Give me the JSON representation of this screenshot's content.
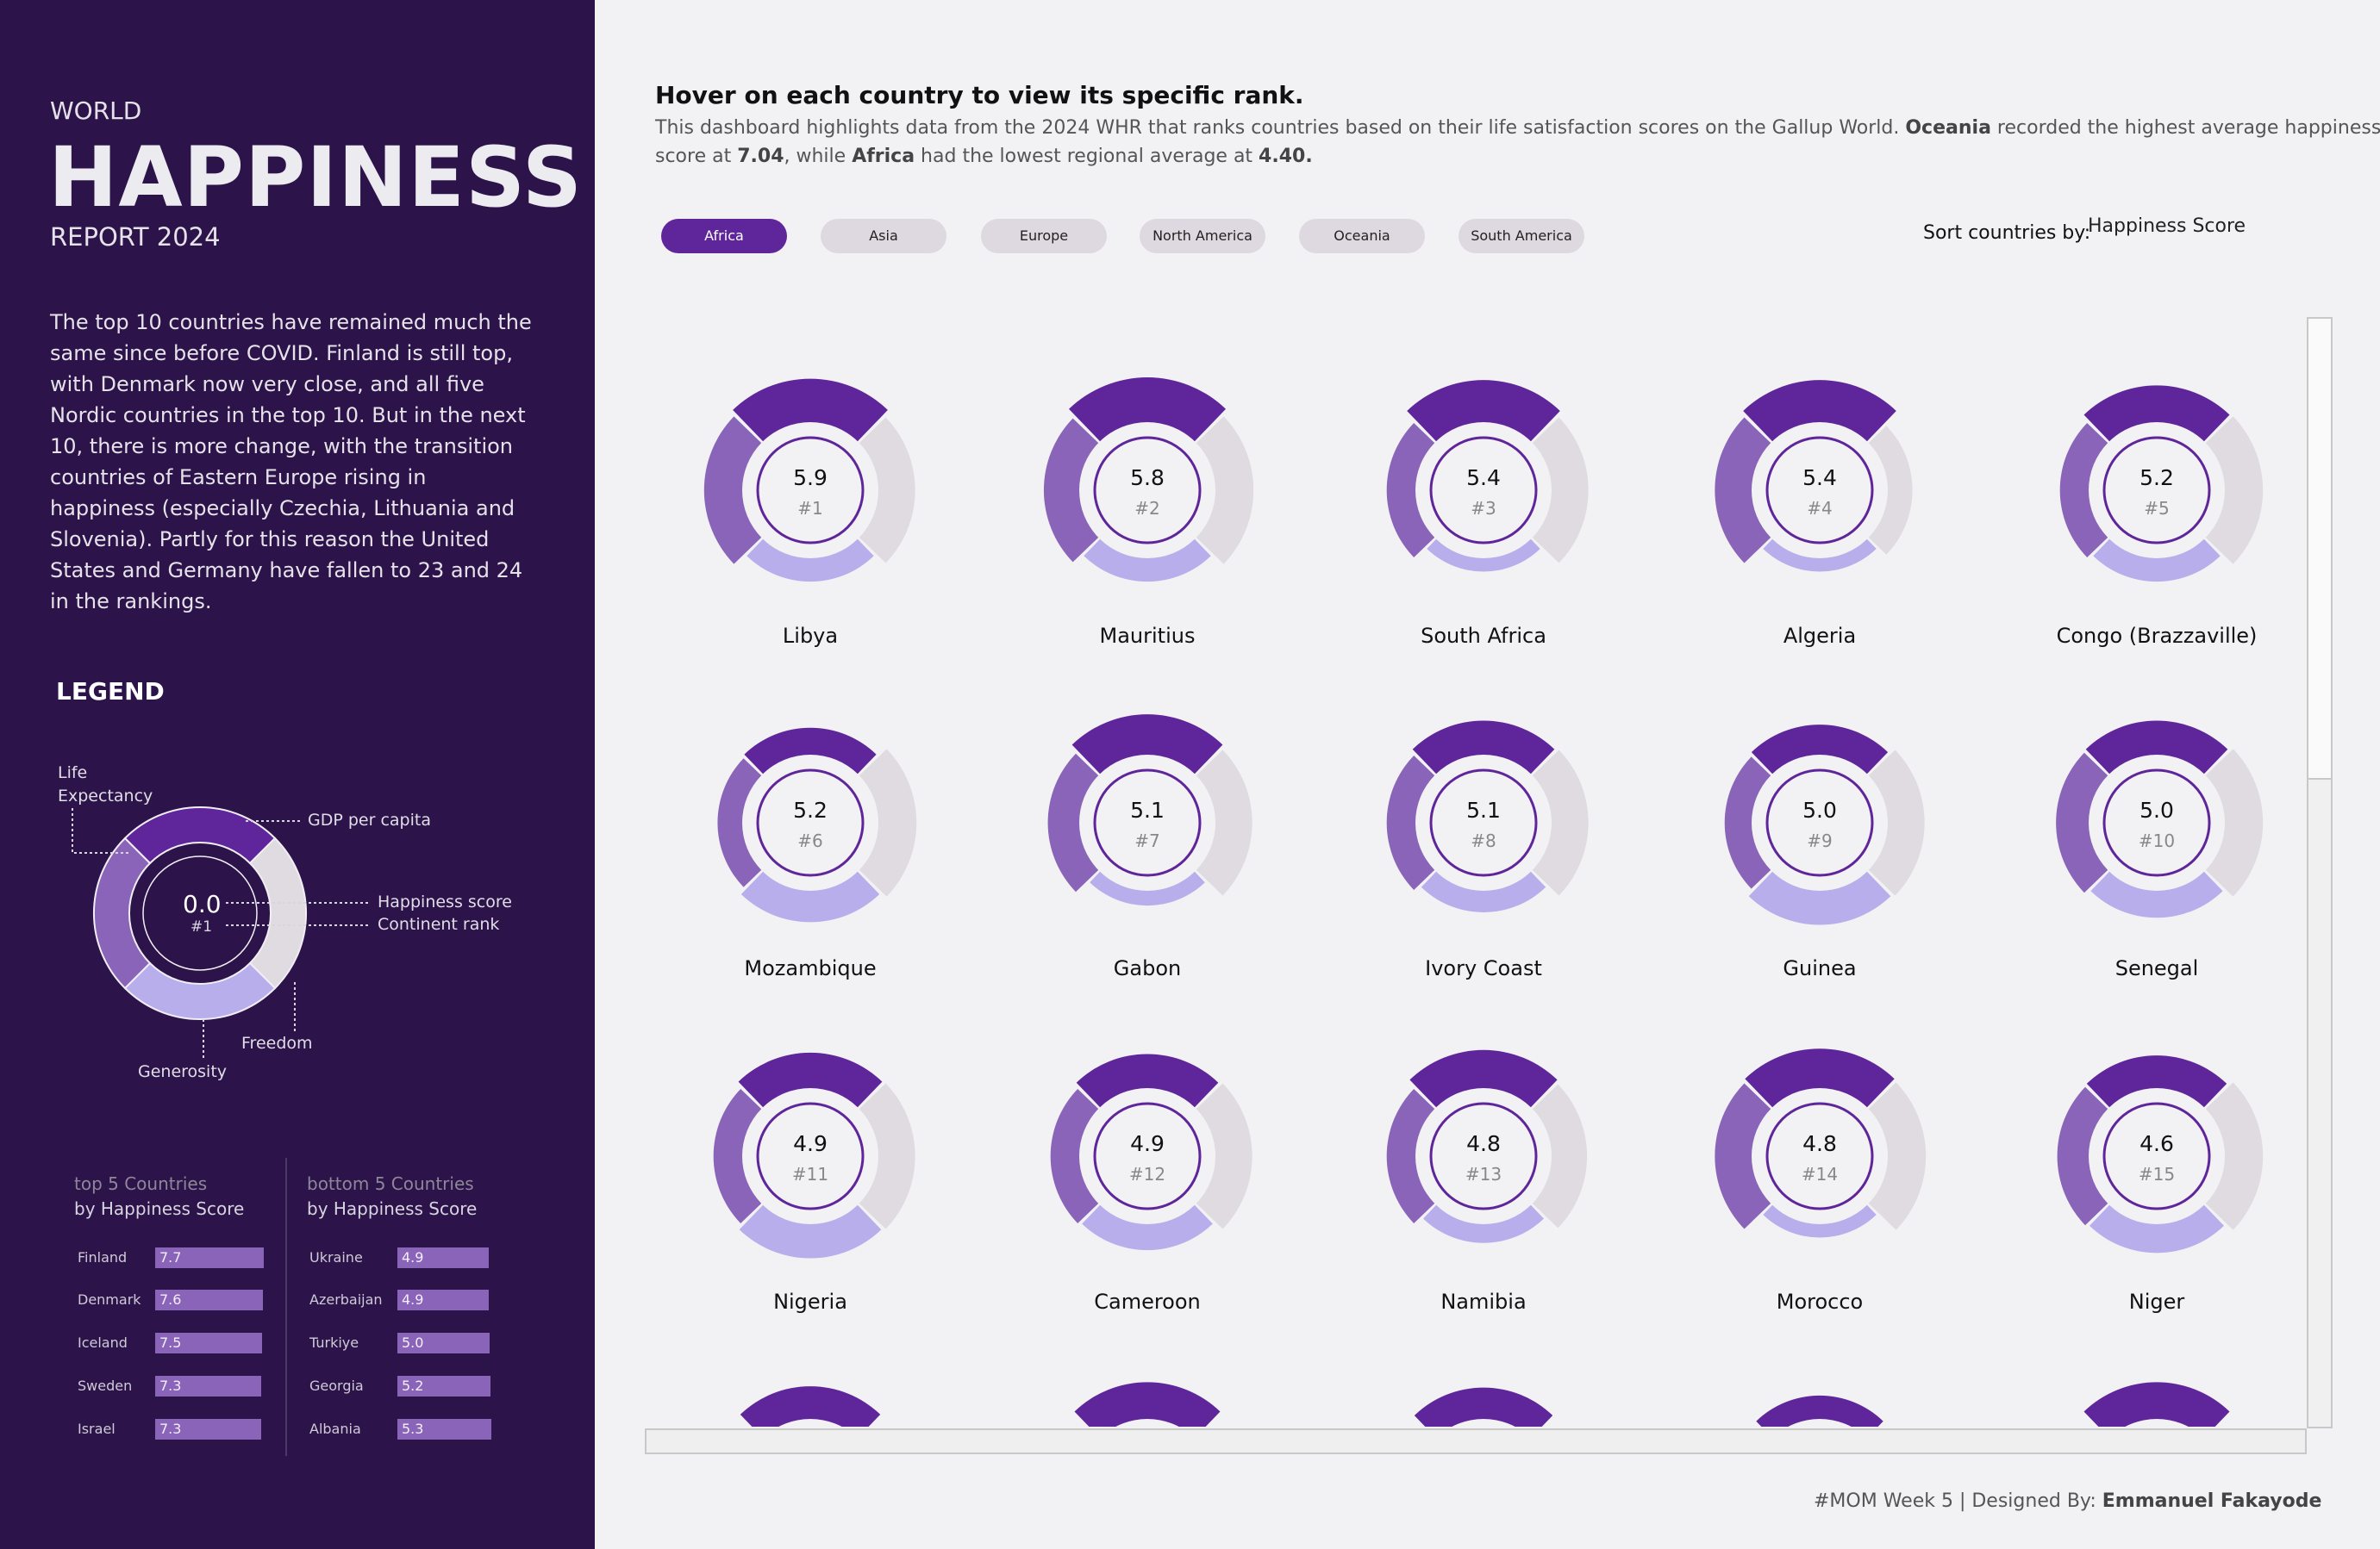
{
  "sidebar": {
    "kicker": "WORLD",
    "title": "HAPPINESS",
    "subtitle": "REPORT 2024",
    "paragraph": "The top 10 countries have remained much the same since before COVID. Finland is still top, with Denmark now very close, and all five Nordic countries in the top 10. But in the next 10, there is more change, with the transition countries of Eastern Europe rising in happiness (especially Czechia, Lithuania and Slovenia). Partly for this reason the United States and Germany have fallen to 23 and 24 in the rankings.",
    "legend": {
      "title": "LEGEND",
      "score": "0.0",
      "rank": "#1",
      "life": "Life",
      "life2": "Expectancy",
      "gdp": "GDP per capita",
      "happiness": "Happiness score",
      "continent_rank": "Continent rank",
      "freedom": "Freedom",
      "generosity": "Generosity"
    },
    "top5": {
      "h1": "top 5 Countries",
      "h2": "by Happiness Score",
      "rows": [
        {
          "name": "Finland",
          "value": "7.7"
        },
        {
          "name": "Denmark",
          "value": "7.6"
        },
        {
          "name": "Iceland",
          "value": "7.5"
        },
        {
          "name": "Sweden",
          "value": "7.3"
        },
        {
          "name": "Israel",
          "value": "7.3"
        }
      ]
    },
    "bottom5": {
      "h1": "bottom 5 Countries",
      "h2": "by Happiness Score",
      "rows": [
        {
          "name": "Ukraine",
          "value": "4.9"
        },
        {
          "name": "Azerbaijan",
          "value": "4.9"
        },
        {
          "name": "Turkiye",
          "value": "5.0"
        },
        {
          "name": "Georgia",
          "value": "5.2"
        },
        {
          "name": "Albania",
          "value": "5.3"
        }
      ]
    }
  },
  "header": {
    "title": "Hover on each country to view its specific rank.",
    "desc1": "This dashboard highlights data from the 2024 WHR that ranks countries based on their life satisfaction scores on the Gallup World. ",
    "desc_b1": "Oceania",
    "desc2": " recorded the highest average happiness",
    "desc3": "score at ",
    "desc_b2": "7.04",
    "desc4": ", while ",
    "desc_b3": "Africa",
    "desc5": " had the lowest regional average at ",
    "desc_b4": "4.40."
  },
  "filters": [
    "Africa",
    "Asia",
    "Europe",
    "North America",
    "Oceania",
    "South America"
  ],
  "active_filter": "Africa",
  "sort": {
    "label": "Sort countries by:",
    "value": "Happiness Score"
  },
  "colors": {
    "gdp": "#5f259a",
    "life": "#8a64b8",
    "generosity": "#b7aeeb",
    "freedom": "#dfdbe1",
    "ring": "#5f259a"
  },
  "countries": [
    {
      "name": "Libya",
      "score": "5.9",
      "rank": "#1",
      "gdp": 0.97,
      "life": 0.85,
      "generosity": 0.52,
      "freedom": 0.82
    },
    {
      "name": "Mauritius",
      "score": "5.8",
      "rank": "#2",
      "gdp": 1.0,
      "life": 0.79,
      "generosity": 0.52,
      "freedom": 0.85
    },
    {
      "name": "South Africa",
      "score": "5.4",
      "rank": "#3",
      "gdp": 0.94,
      "life": 0.64,
      "generosity": 0.3,
      "freedom": 0.82
    },
    {
      "name": "Algeria",
      "score": "5.4",
      "rank": "#4",
      "gdp": 0.94,
      "life": 0.82,
      "generosity": 0.3,
      "freedom": 0.55
    },
    {
      "name": "Congo (Brazzaville)",
      "score": "5.2",
      "rank": "#5",
      "gdp": 0.82,
      "life": 0.64,
      "generosity": 0.52,
      "freedom": 0.85
    },
    {
      "name": "Mozambique",
      "score": "5.2",
      "rank": "#6",
      "gdp": 0.6,
      "life": 0.55,
      "generosity": 0.7,
      "freedom": 0.85
    },
    {
      "name": "Gabon",
      "score": "5.1",
      "rank": "#7",
      "gdp": 0.9,
      "life": 0.7,
      "generosity": 0.33,
      "freedom": 0.82
    },
    {
      "name": "Ivory Coast",
      "score": "5.1",
      "rank": "#8",
      "gdp": 0.76,
      "life": 0.64,
      "generosity": 0.48,
      "freedom": 0.82
    },
    {
      "name": "Guinea",
      "score": "5.0",
      "rank": "#9",
      "gdp": 0.67,
      "life": 0.6,
      "generosity": 0.76,
      "freedom": 0.82
    },
    {
      "name": "Senegal",
      "score": "5.0",
      "rank": "#10",
      "gdp": 0.76,
      "life": 0.73,
      "generosity": 0.6,
      "freedom": 0.85
    },
    {
      "name": "Nigeria",
      "score": "4.9",
      "rank": "#11",
      "gdp": 0.79,
      "life": 0.64,
      "generosity": 0.76,
      "freedom": 0.82
    },
    {
      "name": "Cameroon",
      "score": "4.9",
      "rank": "#12",
      "gdp": 0.76,
      "life": 0.64,
      "generosity": 0.58,
      "freedom": 0.82
    },
    {
      "name": "Namibia",
      "score": "4.8",
      "rank": "#13",
      "gdp": 0.85,
      "life": 0.64,
      "generosity": 0.42,
      "freedom": 0.79
    },
    {
      "name": "Morocco",
      "score": "4.8",
      "rank": "#14",
      "gdp": 0.88,
      "life": 0.82,
      "generosity": 0.3,
      "freedom": 0.85
    },
    {
      "name": "Niger",
      "score": "4.6",
      "rank": "#15",
      "gdp": 0.73,
      "life": 0.7,
      "generosity": 0.64,
      "freedom": 0.85
    }
  ],
  "partial_row_gdp": [
    0.73,
    0.82,
    0.7,
    0.52,
    0.82
  ],
  "footer": {
    "text": "#MOM Week 5 | Designed By: ",
    "author": "Emmanuel Fakayode"
  }
}
